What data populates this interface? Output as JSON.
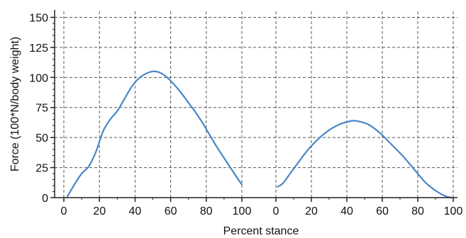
{
  "chart_data": {
    "type": "line",
    "title": "",
    "xlabel": "Percent stance",
    "ylabel": "Force (100*N/body weight)",
    "ylim": [
      0,
      155
    ],
    "yticks": [
      "0",
      "25",
      "50",
      "75",
      "100",
      "125",
      "150"
    ],
    "ytick_values": [
      0,
      25,
      50,
      75,
      100,
      125,
      150
    ],
    "grid": true,
    "legend": "none",
    "line_color": "#4a86c8",
    "grid_color": "#555555",
    "panels": [
      {
        "xlim": [
          0,
          100
        ],
        "xticks": [
          "0",
          "20",
          "40",
          "60",
          "80",
          "100"
        ],
        "xtick_values": [
          0,
          20,
          40,
          60,
          80,
          100
        ],
        "series": [
          {
            "x": [
              2,
              6,
              10,
              14,
              18,
              22,
              26,
              30,
              34,
              38,
              42,
              46,
              50,
              54,
              58,
              62,
              66,
              70,
              74,
              78,
              82,
              86,
              90,
              94,
              98,
              100
            ],
            "y": [
              1,
              11,
              20,
              26,
              38,
              55,
              65,
              72,
              82,
              92,
              99,
              103,
              105,
              104,
              100,
              94,
              87,
              79,
              71,
              62,
              52,
              42,
              33,
              24,
              15,
              11
            ]
          }
        ]
      },
      {
        "xlim": [
          0,
          100
        ],
        "xticks": [
          "0",
          "20",
          "40",
          "60",
          "80",
          "100"
        ],
        "xtick_values": [
          0,
          20,
          40,
          60,
          80,
          100
        ],
        "series": [
          {
            "x": [
              1,
              4,
              8,
              12,
              16,
              20,
              24,
              28,
              32,
              36,
              40,
              44,
              48,
              52,
              56,
              60,
              64,
              68,
              72,
              76,
              80,
              84,
              88,
              92,
              96,
              99
            ],
            "y": [
              9,
              12,
              20,
              28,
              36,
              43,
              49,
              54,
              58,
              61,
              63,
              64,
              63,
              61,
              57,
              52,
              46,
              40,
              34,
              27,
              20,
              13,
              8,
              4,
              1,
              0
            ]
          }
        ]
      }
    ]
  }
}
